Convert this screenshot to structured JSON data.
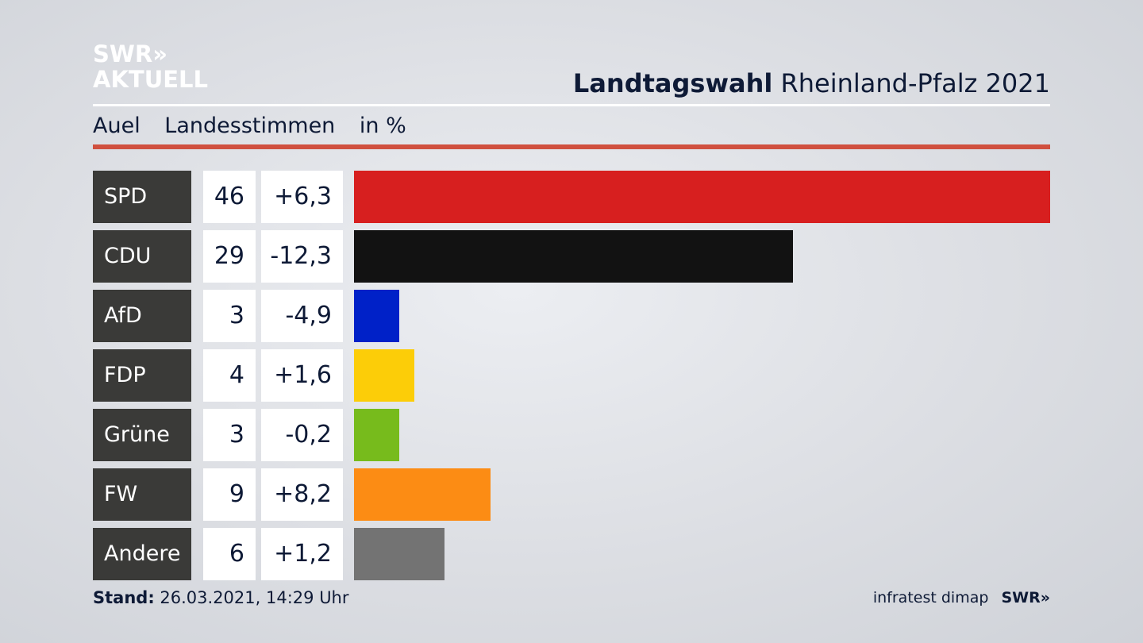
{
  "header": {
    "logo_line1": "SWR»",
    "logo_line2": "AKTUELL",
    "title_bold": "Landtagswahl",
    "title_rest": "Rheinland-Pfalz 2021"
  },
  "subtitle": {
    "place": "Auel",
    "kind": "Landesstimmen",
    "unit": "in %"
  },
  "chart_data": {
    "type": "bar",
    "title": "Landtagswahl Rheinland-Pfalz 2021",
    "subtitle": "Auel Landesstimmen in %",
    "categories": [
      "SPD",
      "CDU",
      "AfD",
      "FDP",
      "Grüne",
      "FW",
      "Andere"
    ],
    "values": [
      46,
      29,
      3,
      4,
      3,
      9,
      6
    ],
    "diffs": [
      "+6,3",
      "-12,3",
      "-4,9",
      "+1,6",
      "-0,2",
      "+8,2",
      "+1,2"
    ],
    "colors": [
      "#d71f1f",
      "#121212",
      "#0021c8",
      "#fccd08",
      "#77bb1c",
      "#fc8c14",
      "#737373"
    ],
    "xlim": [
      0,
      46
    ],
    "orientation": "horizontal"
  },
  "footer": {
    "stand_label": "Stand:",
    "stand_value": "26.03.2021, 14:29 Uhr",
    "source": "infratest dimap",
    "source_logo": "SWR»"
  }
}
